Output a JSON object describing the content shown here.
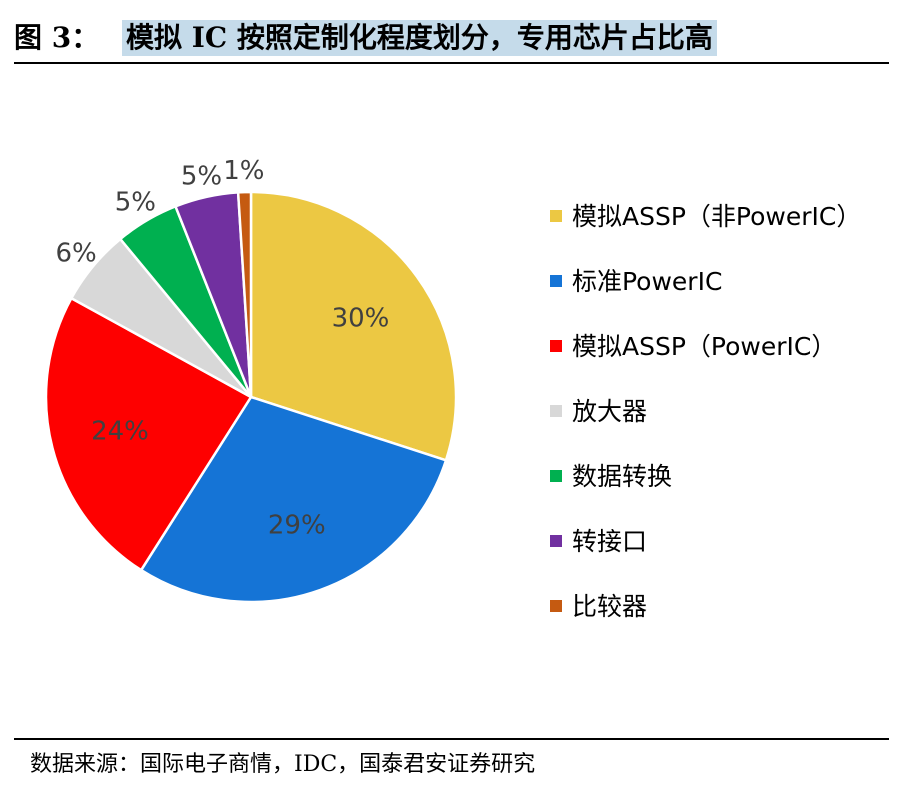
{
  "figure": {
    "prefix": "图 3：",
    "title": "模拟 IC 按照定制化程度划分，专用芯片占比高",
    "source": "数据来源：国际电子商情，IDC，国泰君安证券研究"
  },
  "chart_data": {
    "type": "pie",
    "categories": [
      "模拟ASSP（非PowerIC）",
      "标准PowerIC",
      "模拟ASSP（PowerIC）",
      "放大器",
      "数据转换",
      "转接口",
      "比较器"
    ],
    "values": [
      30,
      29,
      24,
      6,
      5,
      5,
      1
    ],
    "labels": [
      "30%",
      "29%",
      "24%",
      "6%",
      "5%",
      "5%",
      "1%"
    ],
    "colors": [
      "#ecc843",
      "#1574d6",
      "#fe0000",
      "#d8d8d8",
      "#00b050",
      "#7130a0",
      "#c55a11"
    ],
    "legend_position": "right"
  }
}
